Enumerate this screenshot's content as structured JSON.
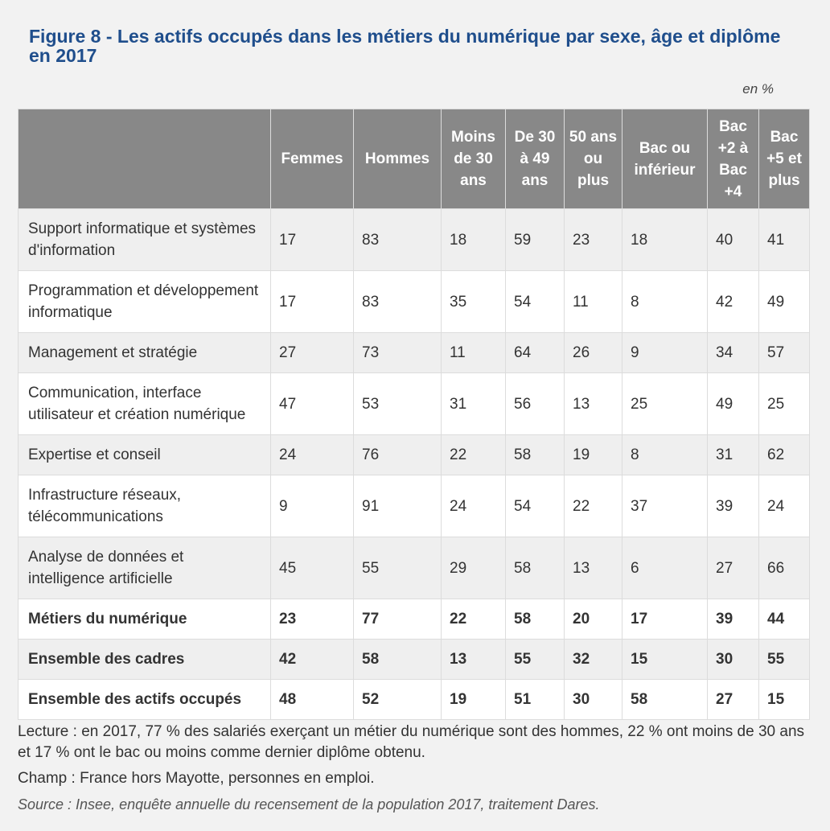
{
  "title": "Figure 8 - Les actifs occupés dans les métiers du numérique par sexe, âge et diplôme en 2017",
  "unit": "en %",
  "columns": [
    "",
    "Femmes",
    "Hommes",
    "Moins de 30 ans",
    "De 30 à 49 ans",
    "50 ans ou plus",
    "Bac ou inférieur",
    "Bac +2 à Bac +4",
    "Bac +5 et plus"
  ],
  "rows": [
    {
      "label": "Support informatique et systèmes d'information",
      "values": [
        "17",
        "83",
        "18",
        "59",
        "23",
        "18",
        "40",
        "41"
      ]
    },
    {
      "label": "Programmation et développement informatique",
      "values": [
        "17",
        "83",
        "35",
        "54",
        "11",
        "8",
        "42",
        "49"
      ]
    },
    {
      "label": "Management et stratégie",
      "values": [
        "27",
        "73",
        "11",
        "64",
        "26",
        "9",
        "34",
        "57"
      ]
    },
    {
      "label": "Communication, interface utilisateur et création numérique",
      "values": [
        "47",
        "53",
        "31",
        "56",
        "13",
        "25",
        "49",
        "25"
      ]
    },
    {
      "label": "Expertise et conseil",
      "values": [
        "24",
        "76",
        "22",
        "58",
        "19",
        "8",
        "31",
        "62"
      ]
    },
    {
      "label": "Infrastructure réseaux, télécommunications",
      "values": [
        "9",
        "91",
        "24",
        "54",
        "22",
        "37",
        "39",
        "24"
      ]
    },
    {
      "label": "Analyse de données et intelligence artificielle",
      "values": [
        "45",
        "55",
        "29",
        "58",
        "13",
        "6",
        "27",
        "66"
      ]
    },
    {
      "label": "Métiers du numérique",
      "values": [
        "23",
        "77",
        "22",
        "58",
        "20",
        "17",
        "39",
        "44"
      ]
    },
    {
      "label": "Ensemble des cadres",
      "values": [
        "42",
        "58",
        "13",
        "55",
        "32",
        "15",
        "30",
        "55"
      ]
    },
    {
      "label": "Ensemble des actifs occupés",
      "values": [
        "48",
        "52",
        "19",
        "51",
        "30",
        "58",
        "27",
        "15"
      ]
    }
  ],
  "notes": {
    "lecture": "Lecture : en 2017, 77 % des salariés exerçant un métier du numérique sont des hommes, 22 % ont moins de 30 ans et 17 % ont le bac ou moins comme dernier diplôme obtenu.",
    "champ": "Champ : France hors Mayotte, personnes en emploi.",
    "source": "Source : Insee, enquête annuelle du recensement de la population 2017, traitement Dares."
  },
  "colors": {
    "title": "#1f4e8c",
    "header_bg": "#888888",
    "row_alt": "#efefef"
  }
}
